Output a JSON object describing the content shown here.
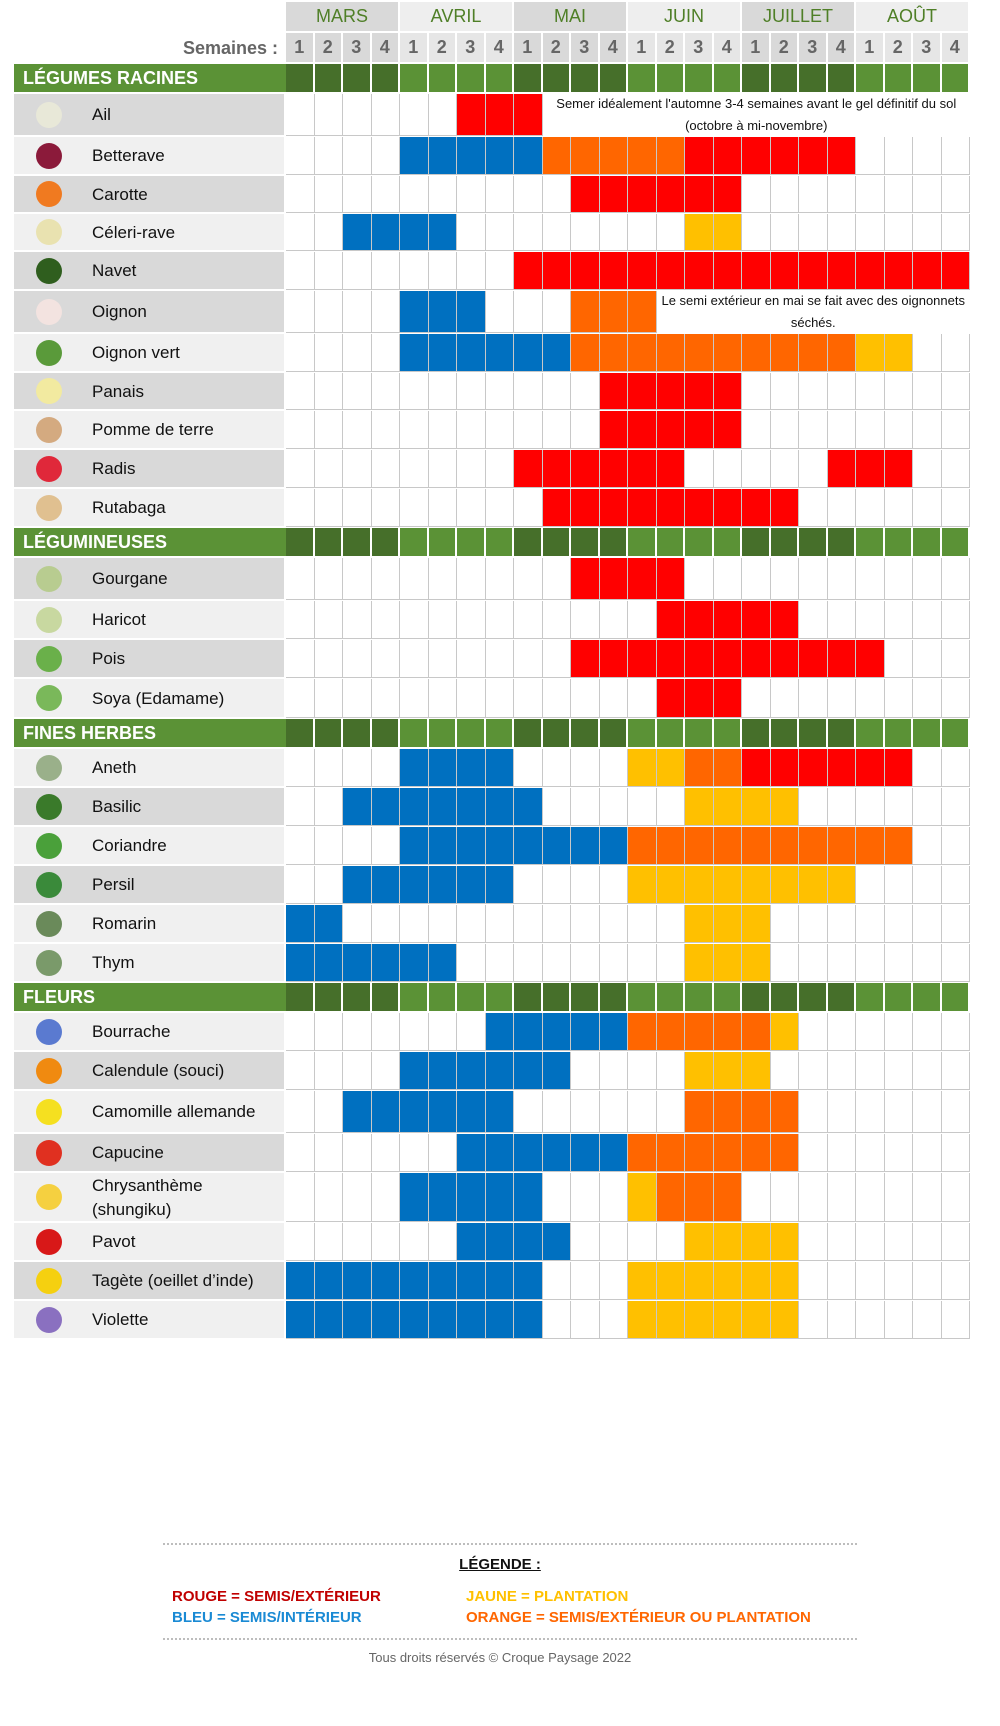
{
  "colors": {
    "R": "#ff0000",
    "B": "#0070c0",
    "O": "#ff6600",
    "Y": "#ffc000",
    ".": "#ffffff"
  },
  "months": [
    "MARS",
    "AVRIL",
    "MAI",
    "JUIN",
    "JUILLET",
    "AOÛT"
  ],
  "weeks_label": "Semaines :",
  "week_numbers": [
    "1",
    "2",
    "3",
    "4"
  ],
  "sections": [
    {
      "title": "LÉGUMES RACINES",
      "items": [
        {
          "name": "Ail",
          "bg": "d",
          "icon": "garlic-icon",
          "icon_color": "#e8e8d8",
          "cells": "......RRR...............",
          "note": "Semer idéalement  l'automne 3-4 semaines  avant le gel définitif du sol (octobre à mi-novembre)",
          "note_from": 10
        },
        {
          "name": "Betterave",
          "bg": "l",
          "icon": "beet-icon",
          "icon_color": "#8b1a3a",
          "cells": "....BBBBBOOOOORRRRRR...."
        },
        {
          "name": "Carotte",
          "bg": "d",
          "icon": "carrot-icon",
          "icon_color": "#f07a20",
          "cells": "..........RRRRRR........"
        },
        {
          "name": "Céleri-rave",
          "bg": "l",
          "icon": "celeriac-icon",
          "icon_color": "#e9e2b0",
          "cells": "..BBBB........YY........"
        },
        {
          "name": "Navet",
          "bg": "d",
          "icon": "turnip-icon",
          "icon_color": "#2f5e1e",
          "cells": "........RRRRRRRRRRRRRRRR"
        },
        {
          "name": "Oignon",
          "bg": "d",
          "icon": "onion-icon",
          "icon_color": "#f3e3e0",
          "cells": "....BBB...OOO...........",
          "note": "Le semi extérieur en mai se fait avec des oignonnets séchés.",
          "note_from": 14
        },
        {
          "name": "Oignon vert",
          "bg": "l",
          "icon": "green-onion-icon",
          "icon_color": "#5a9a3a",
          "cells": "....BBBBBBOOOOOOOOOOYY.."
        },
        {
          "name": "Panais",
          "bg": "d",
          "icon": "parsnip-icon",
          "icon_color": "#f2eaa0",
          "cells": "...........RRRRR........"
        },
        {
          "name": "Pomme de terre",
          "bg": "l",
          "icon": "potato-icon",
          "icon_color": "#d4aa80",
          "cells": "...........RRRRR........"
        },
        {
          "name": "Radis",
          "bg": "d",
          "icon": "radish-icon",
          "icon_color": "#e0283a",
          "cells": "........RRRRRR.....RRR.."
        },
        {
          "name": "Rutabaga",
          "bg": "l",
          "icon": "rutabaga-icon",
          "icon_color": "#e0c090",
          "cells": ".........RRRRRRRRR......"
        }
      ]
    },
    {
      "title": "LÉGUMINEUSES",
      "items": [
        {
          "name": "Gourgane",
          "bg": "d",
          "icon": "fava-bean-icon",
          "icon_color": "#b8cc90",
          "cells": "..........RRRR.........."
        },
        {
          "name": "Haricot",
          "bg": "l",
          "icon": "bean-icon",
          "icon_color": "#c8d8a0",
          "cells": ".............RRRRR......"
        },
        {
          "name": "Pois",
          "bg": "d",
          "icon": "pea-icon",
          "icon_color": "#6ab04a",
          "cells": "..........RRRRRRRRRRR..."
        },
        {
          "name": "Soya (Edamame)",
          "bg": "l",
          "icon": "soy-icon",
          "icon_color": "#7ab85a",
          "cells": ".............RRR........"
        }
      ]
    },
    {
      "title": "FINES HERBES",
      "items": [
        {
          "name": "Aneth",
          "bg": "l",
          "icon": "dill-icon",
          "icon_color": "#9ab08a",
          "cells": "....BBBB....YYOORRRRRR.."
        },
        {
          "name": "Basilic",
          "bg": "d",
          "icon": "basil-icon",
          "icon_color": "#3a7a2a",
          "cells": "..BBBBBBB.....YYYY......"
        },
        {
          "name": "Coriandre",
          "bg": "l",
          "icon": "coriander-icon",
          "icon_color": "#4aa03a",
          "cells": "....BBBBBBBBOOOOOOOOOO.."
        },
        {
          "name": "Persil",
          "bg": "d",
          "icon": "parsley-icon",
          "icon_color": "#3a8a3a",
          "cells": "..BBBBBB....YYYYYYYY...."
        },
        {
          "name": "Romarin",
          "bg": "l",
          "icon": "rosemary-icon",
          "icon_color": "#6a8a5a",
          "cells": "BB............YYY......."
        },
        {
          "name": "Thym",
          "bg": "l",
          "icon": "thyme-icon",
          "icon_color": "#7a9a6a",
          "cells": "BBBBBB........YYY......."
        }
      ]
    },
    {
      "title": "FLEURS",
      "items": [
        {
          "name": "Bourrache",
          "bg": "l",
          "icon": "borage-icon",
          "icon_color": "#5a7ad0",
          "cells": ".......BBBBBOOOOOY......"
        },
        {
          "name": "Calendule (souci)",
          "bg": "d",
          "icon": "calendula-icon",
          "icon_color": "#f08a10",
          "cells": "....BBBBBB....YYY......."
        },
        {
          "name": "Camomille allemande",
          "bg": "l",
          "icon": "chamomile-icon",
          "icon_color": "#f5e020",
          "cells": "..BBBBBB......OOOO......"
        },
        {
          "name": "Capucine",
          "bg": "d",
          "icon": "nasturtium-icon",
          "icon_color": "#e03020",
          "cells": "......BBBBBBOOOOOO......"
        },
        {
          "name": "Chrysanthème",
          "name2": "(shungiku)",
          "bg": "l",
          "icon": "chrysanthemum-icon",
          "icon_color": "#f5d040",
          "cells": "....BBBBB...YOOO........"
        },
        {
          "name": "Pavot",
          "bg": "l",
          "icon": "poppy-icon",
          "icon_color": "#d81818",
          "cells": "......BBBB....YYYY......"
        },
        {
          "name": "Tagète (oeillet d’inde)",
          "bg": "d",
          "icon": "marigold-icon",
          "icon_color": "#f5d010",
          "cells": "BBBBBBBBB...YYYYYY......"
        },
        {
          "name": "Violette",
          "bg": "l",
          "icon": "violet-icon",
          "icon_color": "#8a70c0",
          "cells": "BBBBBBBBB...YYYYYY......"
        }
      ]
    }
  ],
  "legend": {
    "title": "LÉGENDE :",
    "rouge": "ROUGE = SEMIS/EXTÉRIEUR",
    "bleu": "BLEU = SEMIS/INTÉRIEUR",
    "jaune": "JAUNE = PLANTATION",
    "orange": "ORANGE = SEMIS/EXTÉRIEUR OU PLANTATION",
    "colors": {
      "rouge": "#c00000",
      "bleu": "#1a8ad4",
      "jaune": "#ffc000",
      "orange": "#ff6600"
    }
  },
  "copyright": "Tous droits réservés © Croque Paysage 2022"
}
